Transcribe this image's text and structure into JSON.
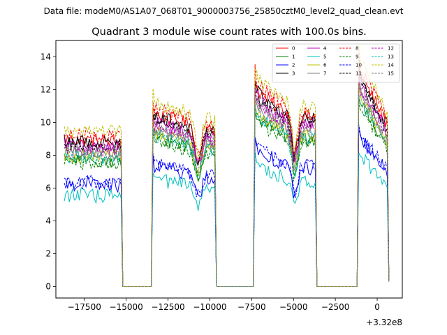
{
  "suptitle": "Data file: modeM0/AS1A07_068T01_9000003756_25850cztM0_level2_quad_clean.evt",
  "chart_data": {
    "type": "line",
    "title": "Quadrant 3 module wise count rates with 100.0s bins.",
    "xlabel": "",
    "ylabel": "",
    "x_offset_label": "+3.32e8",
    "xlim": [
      -19200,
      1500
    ],
    "ylim": [
      -0.7,
      15.0
    ],
    "x_ticks": [
      -17500,
      -15000,
      -12500,
      -10000,
      -7500,
      -5000,
      -2500,
      0
    ],
    "x_tick_labels": [
      "−17500",
      "−15000",
      "−12500",
      "−10000",
      "−7500",
      "−5000",
      "−2500",
      "0"
    ],
    "y_ticks": [
      0,
      2,
      4,
      6,
      8,
      10,
      12,
      14
    ],
    "y_tick_labels": [
      "0",
      "2",
      "4",
      "6",
      "8",
      "10",
      "12",
      "14"
    ],
    "grid": false,
    "legend_position": "top-right",
    "bin_seconds": 100,
    "segments": [
      {
        "start": -18700,
        "end": -15300,
        "shape": "flat"
      },
      {
        "start": -13400,
        "end": -9700,
        "shape": "dip"
      },
      {
        "start": -7300,
        "end": -3700,
        "shape": "decay"
      },
      {
        "start": -1100,
        "end": 600,
        "shape": "decay"
      }
    ],
    "series": [
      {
        "name": "0",
        "color": "#ff0000",
        "dashed": false,
        "level": 9.0
      },
      {
        "name": "1",
        "color": "#008000",
        "dashed": false,
        "level": 7.8
      },
      {
        "name": "2",
        "color": "#0000ff",
        "dashed": false,
        "level": 6.3
      },
      {
        "name": "3",
        "color": "#000000",
        "dashed": false,
        "level": 8.9
      },
      {
        "name": "4",
        "color": "#bf00bf",
        "dashed": false,
        "level": 8.6
      },
      {
        "name": "5",
        "color": "#00bfbf",
        "dashed": false,
        "level": 5.6
      },
      {
        "name": "6",
        "color": "#bfbf00",
        "dashed": false,
        "level": 8.0
      },
      {
        "name": "7",
        "color": "#808080",
        "dashed": false,
        "level": 8.2
      },
      {
        "name": "8",
        "color": "#ff0000",
        "dashed": true,
        "level": 9.3
      },
      {
        "name": "9",
        "color": "#008000",
        "dashed": true,
        "level": 7.6
      },
      {
        "name": "10",
        "color": "#0000ff",
        "dashed": true,
        "level": 6.4
      },
      {
        "name": "11",
        "color": "#000000",
        "dashed": true,
        "level": 8.7
      },
      {
        "name": "12",
        "color": "#bf00bf",
        "dashed": true,
        "level": 8.4
      },
      {
        "name": "13",
        "color": "#00bfbf",
        "dashed": true,
        "level": 7.9
      },
      {
        "name": "14",
        "color": "#bfbf00",
        "dashed": true,
        "level": 9.6
      },
      {
        "name": "15",
        "color": "#808080",
        "dashed": true,
        "level": 8.3
      }
    ]
  }
}
